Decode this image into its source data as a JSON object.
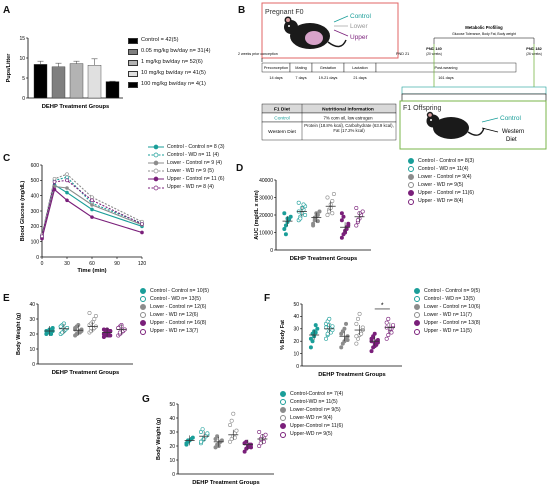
{
  "panel_labels": [
    "A",
    "B",
    "C",
    "D",
    "E",
    "F",
    "G"
  ],
  "colors": {
    "control": "#1a9e99",
    "lower": "#8c8c8c",
    "upper": "#7a1f7a",
    "black": "#111111",
    "pregnant_box": "#e06666",
    "offspring_box": "#7ab648"
  },
  "panel_a": {
    "chart_data": {
      "type": "bar",
      "ylabel": "Pups/Litter",
      "xlabel": "DEHP Treatment Groups",
      "ylim": [
        0,
        15
      ],
      "yticks": [
        "0",
        "5",
        "10",
        "15"
      ],
      "values": [
        8.4,
        7.8,
        8.6,
        8.2,
        4.1
      ],
      "errors": [
        0.8,
        0.9,
        0.6,
        1.6,
        0.1
      ],
      "fills": [
        "#000000",
        "#7f7f7f",
        "#b3b3b3",
        "#e0e0e0",
        "#000000"
      ],
      "legend": [
        "Control = 42(5)",
        "0.05 mg/kg bw/day n= 31(4)",
        "1 mg/kg bw/day n= 52(6)",
        "10 mg/kg bw/day n= 41(5)",
        "100 mg/kg bw/day n= 4(1)"
      ]
    }
  },
  "panel_b": {
    "pregnant_title": "Pregnant F0",
    "dose_labels": [
      "Control",
      "Lower",
      "Upper"
    ],
    "metabolic_title": "Metabolic Profiling",
    "metabolic_sub": "Glucose Tolerance, Body Fat, Body weight",
    "pnd140": "PND 140",
    "pnd140_sub": "(20 weeks)",
    "pnd182": "PND 182",
    "pnd182_sub": "(26 weeks)",
    "pnd21": "PND 21",
    "prior_label": "2 weeks prior conception",
    "stages": [
      "Preconception",
      "Mating",
      "Gestation",
      "Lactation",
      "Post-weaning"
    ],
    "durations": [
      "14 days",
      "7 days",
      "19-21 days",
      "21 days",
      "161 days"
    ],
    "diet_header": [
      "F1 Diet",
      "Nutritional Information"
    ],
    "diet_rows": [
      [
        "Control",
        "7% corn oil, low estrogen"
      ],
      [
        "Western Diet",
        "Protein (18.8% kcal), Carbohydrate (63.9 kcal), Fat (17.2% kcal)"
      ]
    ],
    "offspring_title": "F1 Offspring",
    "offspring_labels": [
      "Control",
      "Western Diet"
    ]
  },
  "panel_c": {
    "chart_data": {
      "type": "line",
      "ylabel": "Blood Glucose (mg/dL)",
      "xlabel": "Time (min)",
      "x": [
        0,
        15,
        30,
        60,
        120
      ],
      "xticks": [
        "0",
        "30",
        "60",
        "90",
        "120"
      ],
      "ylim": [
        0,
        600
      ],
      "yticks": [
        "0",
        "100",
        "200",
        "300",
        "400",
        "500",
        "600"
      ],
      "series": [
        {
          "name": "Control - Control n= 8 (3)",
          "values": [
            130,
            470,
            420,
            310,
            200
          ],
          "style": "control-solid"
        },
        {
          "name": "Control - WD n= 11 (4)",
          "values": [
            140,
            500,
            520,
            350,
            220
          ],
          "style": "control-dash"
        },
        {
          "name": "Lower - Control n= 9 (4)",
          "values": [
            125,
            460,
            450,
            340,
            210
          ],
          "style": "lower-solid"
        },
        {
          "name": "Lower - WD n= 9 (5)",
          "values": [
            145,
            510,
            540,
            390,
            230
          ],
          "style": "lower-dash"
        },
        {
          "name": "Upper - Control n= 11 (6)",
          "values": [
            120,
            440,
            370,
            260,
            160
          ],
          "style": "upper-solid"
        },
        {
          "name": "Upper - WD n= 8 (4)",
          "values": [
            135,
            490,
            500,
            370,
            215
          ],
          "style": "upper-dash"
        }
      ]
    }
  },
  "panel_d": {
    "chart_data": {
      "type": "scatter",
      "ylabel": "AUC (mg/dL x min)",
      "xlabel": "DEHP Treatment Groups",
      "ylim": [
        0,
        40000
      ],
      "yticks": [
        "0",
        "10000",
        "20000",
        "30000",
        "40000"
      ],
      "legend": [
        "Control - Control n= 8(3)",
        "Control - WD n= 11(4)",
        "Lower - Control n= 9(4)",
        "Lower - WD n= 9(5)",
        "Upper - Control n= 11(6)",
        "Upper - WD n= 8(4)"
      ],
      "means": [
        16500,
        22000,
        18500,
        25000,
        13000,
        19000
      ],
      "points": [
        [
          12000,
          14000,
          16000,
          17500,
          19000,
          21000,
          9000,
          18000
        ],
        [
          17000,
          19000,
          21000,
          23000,
          25000,
          27000,
          18000,
          24000,
          26000,
          20000,
          22000
        ],
        [
          15000,
          17000,
          19000,
          20000,
          22000,
          14000,
          18500,
          21000,
          16500
        ],
        [
          20000,
          23000,
          26000,
          28000,
          32000,
          30000,
          22000,
          24000,
          21000
        ],
        [
          7000,
          9000,
          11000,
          13000,
          15000,
          17000,
          19000,
          10000,
          12000,
          14000,
          21000
        ],
        [
          14000,
          16000,
          18000,
          20000,
          22000,
          24000,
          17000,
          21000
        ]
      ]
    }
  },
  "panel_e": {
    "chart_data": {
      "type": "scatter",
      "ylabel": "Body Weight (g)",
      "xlabel": "DEHP Treatment Groups",
      "ylim": [
        0,
        40
      ],
      "yticks": [
        "0",
        "10",
        "20",
        "30",
        "40"
      ],
      "legend": [
        "Control - Control n= 10(5)",
        "Control - WD n= 13(5)",
        "Lower - Control n= 12(6)",
        "Lower - WD n= 12(6)",
        "Upper - Control n= 16(8)",
        "Upper - WD n= 13(7)"
      ],
      "means": [
        22,
        23.5,
        22.5,
        25,
        21,
        23
      ],
      "points": [
        [
          20,
          21,
          22,
          23,
          24,
          22,
          21,
          23,
          20,
          22
        ],
        [
          20,
          21,
          22,
          23,
          24,
          25,
          26,
          22,
          23,
          24,
          25,
          21,
          27
        ],
        [
          19,
          20,
          21,
          22,
          23,
          24,
          25,
          26,
          21,
          22,
          23,
          20
        ],
        [
          21,
          22,
          23,
          24,
          25,
          26,
          27,
          28,
          30,
          32,
          34,
          24
        ],
        [
          18,
          19,
          20,
          21,
          22,
          23,
          20,
          21,
          19,
          22,
          20,
          21,
          23,
          22,
          19,
          20
        ],
        [
          19,
          20,
          21,
          22,
          23,
          24,
          25,
          26,
          22,
          23,
          24,
          21,
          25
        ]
      ]
    }
  },
  "panel_f": {
    "chart_data": {
      "type": "scatter",
      "ylabel": "% Body Fat",
      "xlabel": "DEHP Treatment Groups",
      "ylim": [
        0,
        50
      ],
      "yticks": [
        "0",
        "10",
        "20",
        "30",
        "40",
        "50"
      ],
      "significance": "*",
      "legend": [
        "Control - Control n= 9(5)",
        "Control - WD n= 13(5)",
        "Lower - Control n= 10(6)",
        "Lower - WD n= 11(7)",
        "Upper - Control n= 13(8)",
        "Upper - WD n= 11(5)"
      ],
      "means": [
        25,
        30,
        24,
        29,
        20,
        31
      ],
      "points": [
        [
          15,
          20,
          24,
          27,
          30,
          22,
          26,
          28,
          33
        ],
        [
          22,
          25,
          28,
          30,
          32,
          34,
          36,
          38,
          27,
          29,
          31,
          26,
          33
        ],
        [
          15,
          18,
          20,
          22,
          24,
          26,
          28,
          30,
          34,
          21
        ],
        [
          18,
          22,
          25,
          28,
          31,
          34,
          38,
          42,
          26,
          29,
          24
        ],
        [
          12,
          15,
          18,
          20,
          21,
          22,
          24,
          26,
          17,
          19,
          20,
          23,
          16
        ],
        [
          22,
          25,
          28,
          30,
          32,
          35,
          38,
          30,
          27,
          33,
          31
        ]
      ]
    }
  },
  "panel_g": {
    "chart_data": {
      "type": "scatter",
      "ylabel": "Body Weight (g)",
      "xlabel": "DEHP Treatment Groups",
      "ylim": [
        0,
        50
      ],
      "yticks": [
        "0",
        "10",
        "20",
        "30",
        "40",
        "50"
      ],
      "legend": [
        "Control-Control n= 7(4)",
        "Control-WD n= 11(5)",
        "Lower-Control n= 9(5)",
        "Lower-WD n= 9(4)",
        "Upper-Control n= 11(6)",
        "Upper-WD n= 9(5)"
      ],
      "means": [
        24,
        27,
        23,
        28,
        21,
        25
      ],
      "points": [
        [
          21,
          23,
          24,
          25,
          26,
          22,
          24
        ],
        [
          22,
          24,
          26,
          27,
          28,
          30,
          32,
          25,
          27,
          29,
          23
        ],
        [
          19,
          21,
          22,
          23,
          24,
          25,
          27,
          20,
          23
        ],
        [
          23,
          25,
          27,
          29,
          31,
          35,
          38,
          43,
          26
        ],
        [
          16,
          18,
          19,
          20,
          21,
          22,
          23,
          20,
          21,
          19,
          22
        ],
        [
          20,
          22,
          24,
          26,
          28,
          30,
          25,
          27,
          23
        ]
      ]
    }
  }
}
